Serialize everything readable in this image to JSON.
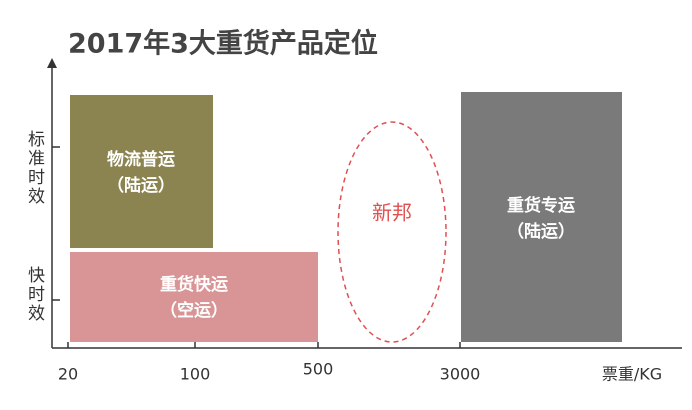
{
  "title": "2017年3大重货产品定位",
  "y_axis": {
    "labels": [
      "标准时效",
      "快时效"
    ]
  },
  "x_axis": {
    "ticks": [
      "20",
      "100",
      "500",
      "3000"
    ],
    "unit": "票重/KG"
  },
  "boxes": [
    {
      "label": "物流普运",
      "sublabel": "（陆运）"
    },
    {
      "label": "重货快运",
      "sublabel": "（空运）"
    },
    {
      "label": "重货专运",
      "sublabel": "（陆运）"
    }
  ],
  "ellipse": {
    "label": "新邦"
  }
}
